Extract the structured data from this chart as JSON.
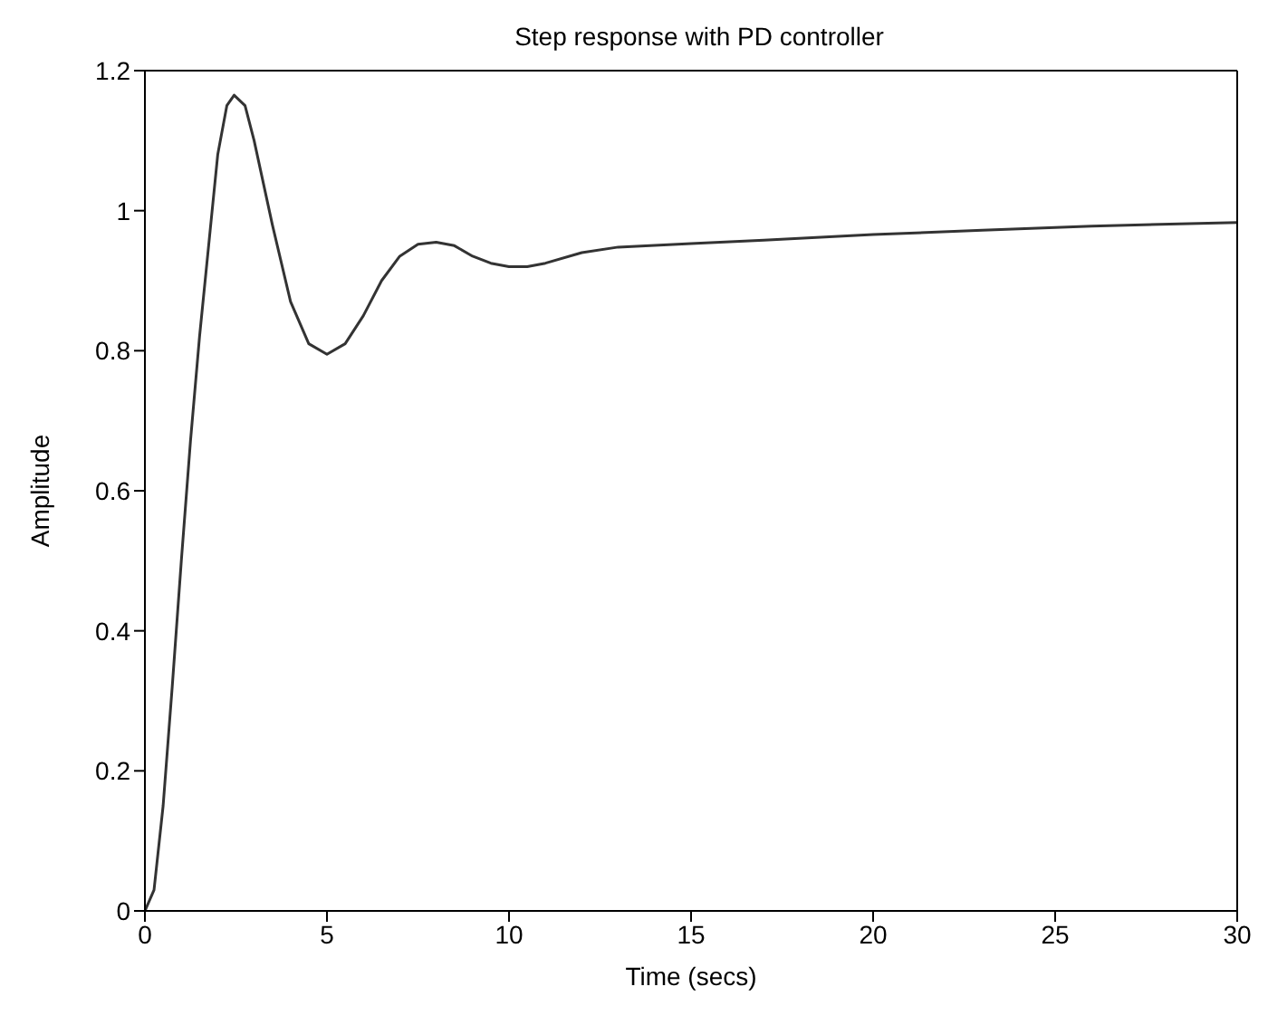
{
  "chart_data": {
    "type": "line",
    "title": "Step response with PD controller",
    "xlabel": "Time (secs)",
    "ylabel": "Amplitude",
    "xlim": [
      0,
      30
    ],
    "xticks": [
      0,
      5,
      10,
      15,
      20,
      25,
      30
    ],
    "ylim": [
      0,
      1.2
    ],
    "yticks": [
      0,
      0.2,
      0.4,
      0.6,
      0.8,
      1,
      1.2
    ],
    "grid": false,
    "legend": false,
    "marker": "none",
    "line_style": "solid",
    "series": [
      {
        "color": "#333333",
        "x": [
          0,
          0.25,
          0.5,
          0.75,
          1,
          1.25,
          1.5,
          1.75,
          2,
          2.25,
          2.45,
          2.75,
          3,
          3.5,
          4,
          4.5,
          5,
          5.5,
          6,
          6.5,
          7,
          7.5,
          8,
          8.5,
          9,
          9.5,
          10,
          10.5,
          11,
          12,
          13,
          15,
          17,
          20,
          23,
          26,
          30
        ],
        "values": [
          0,
          0.03,
          0.15,
          0.32,
          0.5,
          0.67,
          0.82,
          0.95,
          1.08,
          1.15,
          1.165,
          1.15,
          1.1,
          0.98,
          0.87,
          0.81,
          0.795,
          0.81,
          0.85,
          0.9,
          0.935,
          0.952,
          0.955,
          0.95,
          0.935,
          0.925,
          0.92,
          0.92,
          0.925,
          0.94,
          0.948,
          0.953,
          0.958,
          0.966,
          0.972,
          0.978,
          0.983
        ]
      }
    ]
  }
}
